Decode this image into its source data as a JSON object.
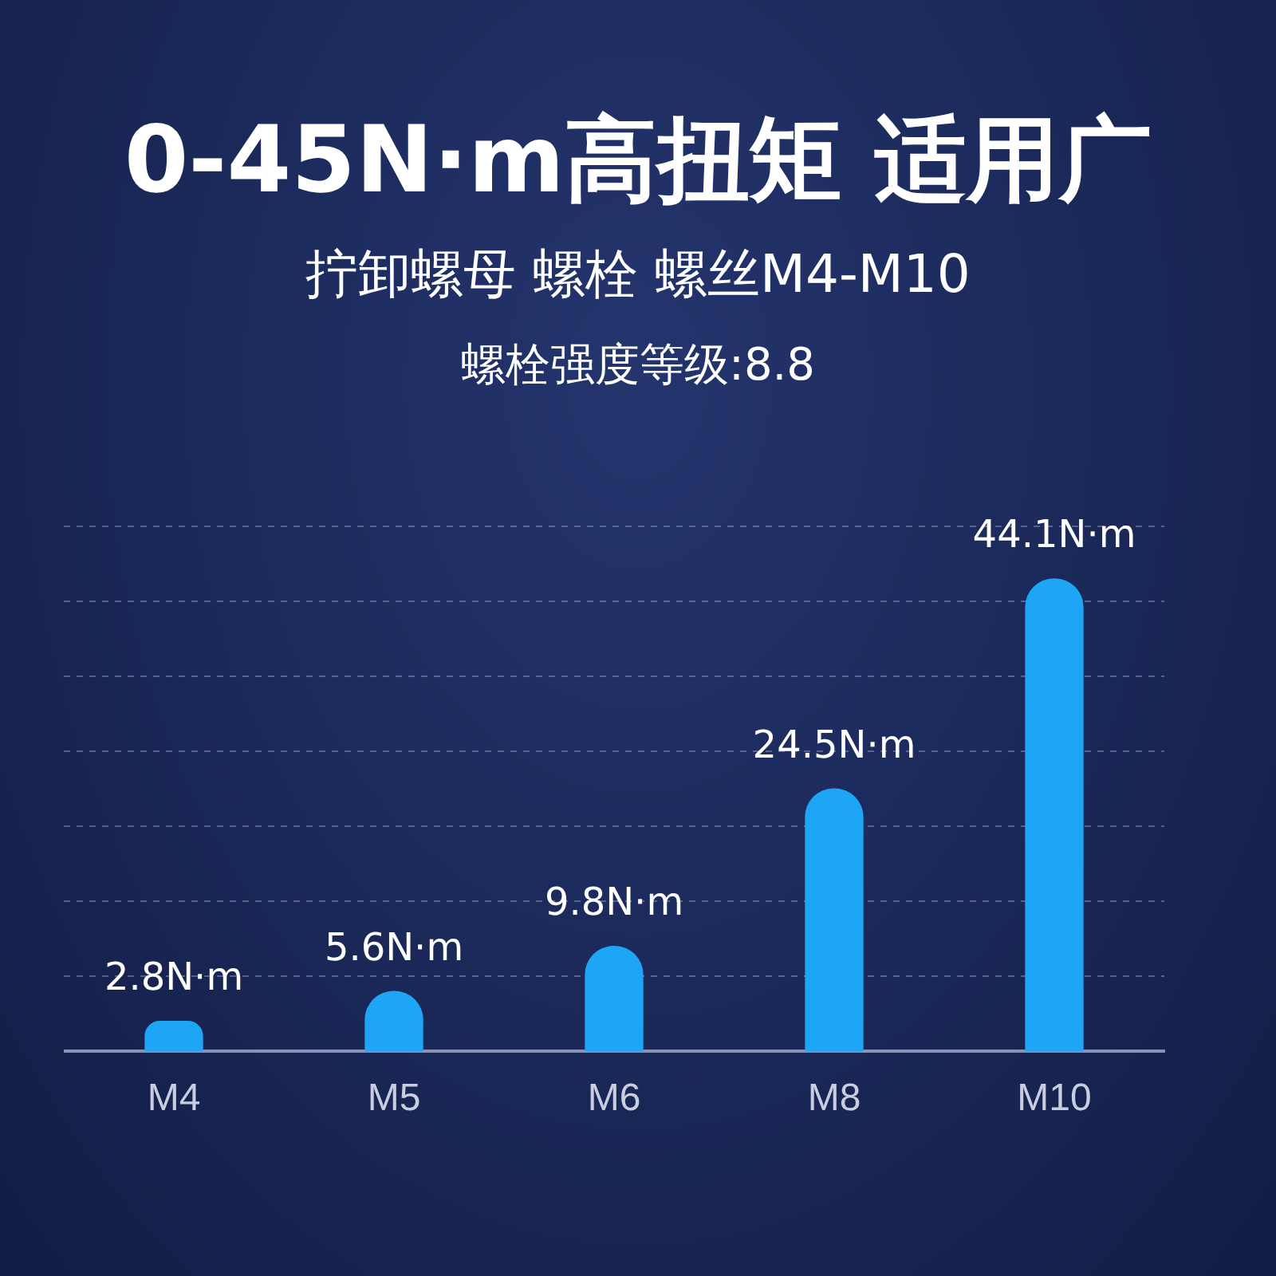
{
  "chart_data": {
    "type": "bar",
    "title": "0-45N·m高扭矩 适用广",
    "subtitle": "拧卸螺母 螺栓 螺丝M4-M10",
    "annotations": [
      "螺栓强度等级:8.8"
    ],
    "categories": [
      "M4",
      "M5",
      "M6",
      "M8",
      "M10"
    ],
    "values": [
      2.8,
      5.6,
      9.8,
      24.5,
      44.1
    ],
    "value_labels": [
      "2.8N·m",
      "5.6N·m",
      "9.8N·m",
      "24.5N·m",
      "44.1N·m"
    ],
    "color": "#1ea6f6",
    "ylim": [
      0,
      49
    ],
    "yticks": [
      {
        "value": 7,
        "label": null
      },
      {
        "value": 14,
        "label": null
      },
      {
        "value": 21,
        "label": null
      },
      {
        "value": 28,
        "label": null
      },
      {
        "value": 35,
        "label": null
      },
      {
        "value": 42,
        "label": null
      },
      {
        "value": 49,
        "label": null
      }
    ],
    "tick_labels": "x",
    "grid": "y"
  }
}
